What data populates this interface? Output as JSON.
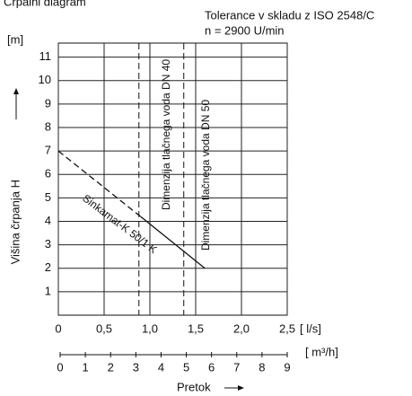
{
  "chart_data": {
    "type": "line",
    "title": "Črpalni diagram",
    "subtitle": "Tolerance v skladu z ISO 2548/C",
    "speed": "n = 2900 U/min",
    "y_label": "Višina črpanja H",
    "y_unit": "[m]",
    "x_label": "Pretok",
    "x_unit": "[ l/s]",
    "x2_unit": "[ m³/h]",
    "xlim": [
      0,
      2.5
    ],
    "xticks": [
      0,
      {
        "value": 0.5,
        "label": "0,5"
      },
      {
        "value": 1.0,
        "label": "1,0"
      },
      {
        "value": 1.5,
        "label": "1,5"
      },
      {
        "value": 2.0,
        "label": "2,0"
      },
      {
        "value": 2.5,
        "label": "2,5"
      }
    ],
    "x2lim": [
      0,
      9
    ],
    "x2ticks": [
      0,
      1,
      2,
      3,
      4,
      5,
      6,
      7,
      8,
      9
    ],
    "ylim": [
      0,
      11.6
    ],
    "yticks": [
      1,
      2,
      3,
      4,
      5,
      6,
      7,
      8,
      9,
      10,
      11
    ],
    "grid": true,
    "color": "#111111",
    "series": [
      {
        "style": "dashed",
        "x": [
          0,
          0.9
        ],
        "values": [
          7,
          4.2
        ]
      },
      {
        "style": "solid",
        "x": [
          0.9,
          1.6
        ],
        "values": [
          4.2,
          2.0
        ]
      }
    ],
    "curve_label": "Sinkamat-K 50/1 K",
    "vlines": [
      {
        "x": 0.88,
        "style": "dashed"
      },
      {
        "x": 1.37,
        "style": "dashed"
      }
    ],
    "annotations": [
      "Dimenzija tlačnega voda DN 40",
      "Dimenzija tlačnega voda DN 50"
    ]
  }
}
